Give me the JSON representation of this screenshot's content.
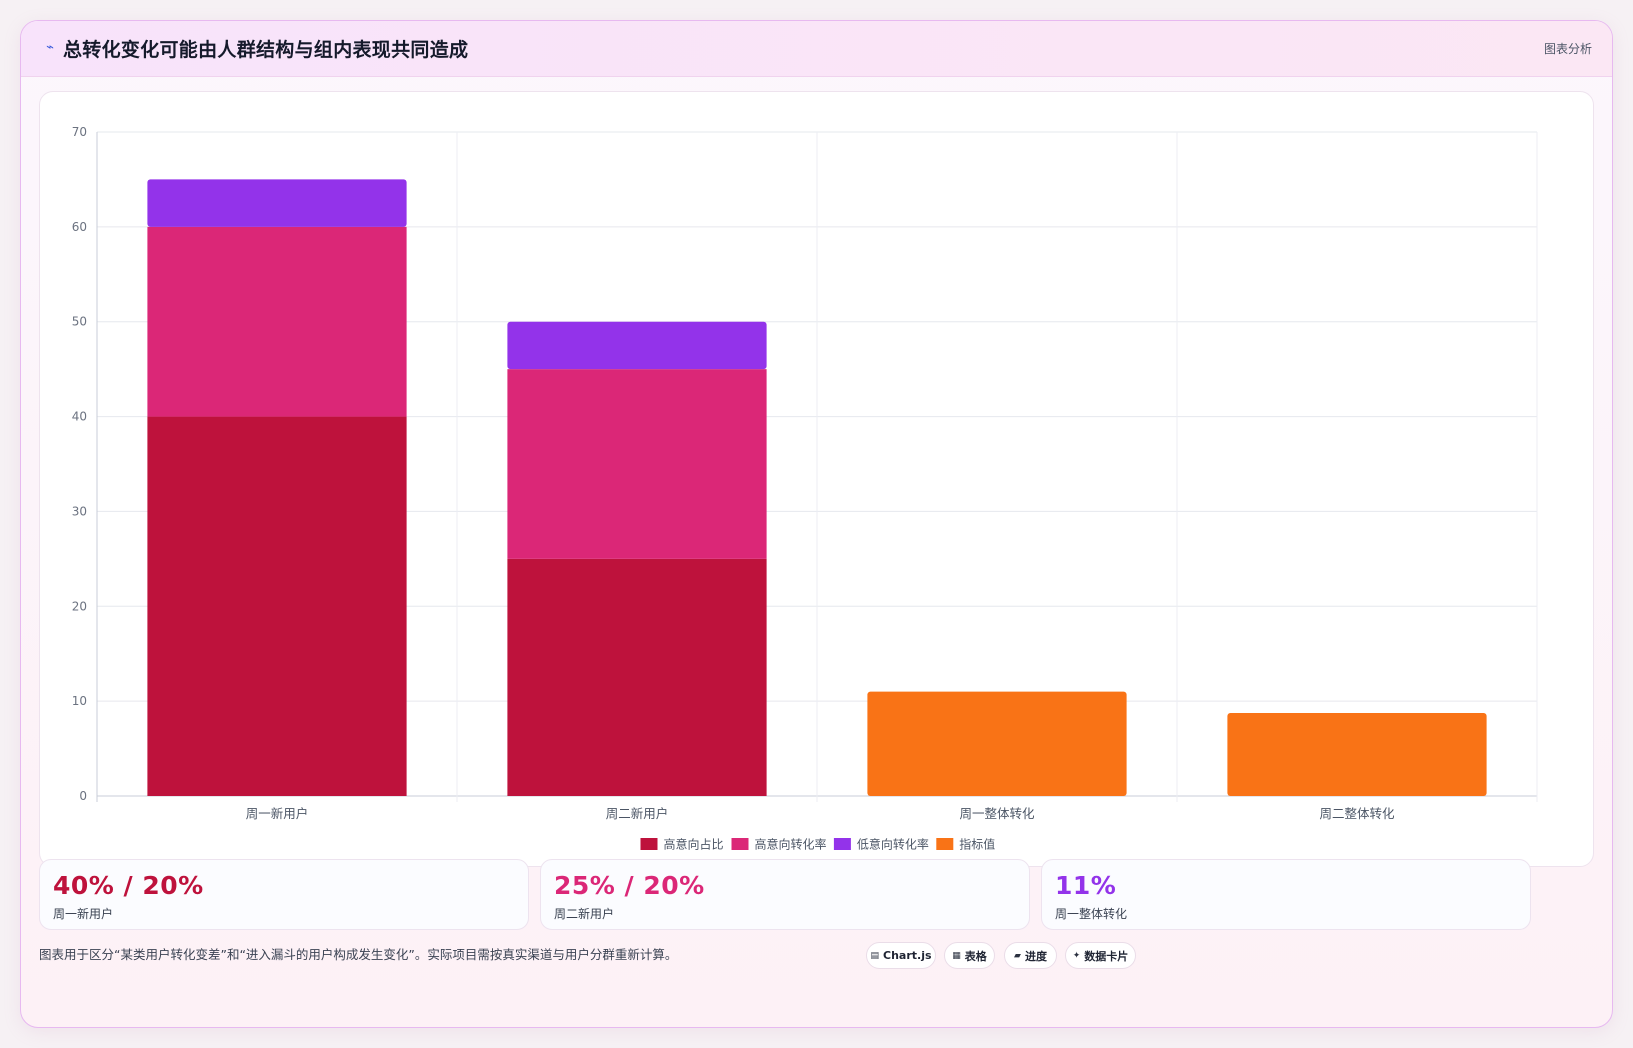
{
  "header": {
    "icon": "trend-icon",
    "title": "总转化变化可能由人群结构与组内表现共同造成",
    "tag": "图表分析"
  },
  "chart_data": {
    "type": "bar",
    "stacked": true,
    "title": "",
    "xlabel": "",
    "ylabel": "",
    "ylim": [
      0,
      70
    ],
    "yticks": [
      0,
      10,
      20,
      30,
      40,
      50,
      60,
      70
    ],
    "grid": true,
    "legend_position": "bottom",
    "categories": [
      "周一新用户",
      "周二新用户",
      "周一整体转化",
      "周二整体转化"
    ],
    "series": [
      {
        "name": "高意向占比",
        "color": "#be123c",
        "values": [
          40,
          25,
          null,
          null
        ]
      },
      {
        "name": "高意向转化率",
        "color": "#db2777",
        "values": [
          20,
          20,
          null,
          null
        ]
      },
      {
        "name": "低意向转化率",
        "color": "#9333ea",
        "values": [
          5,
          5,
          null,
          null
        ]
      },
      {
        "name": "指标值",
        "color": "#f97316",
        "values": [
          null,
          null,
          11,
          8.75
        ]
      }
    ]
  },
  "stats": [
    {
      "value": "40% / 20%",
      "label": "周一新用户",
      "color": "#be123c"
    },
    {
      "value": "25% / 20%",
      "label": "周二新用户",
      "color": "#db2777"
    },
    {
      "value": "11%",
      "label": "周一整体转化",
      "color": "#9333ea"
    }
  ],
  "footnote": "图表用于区分“某类用户转化变差”和“进入漏斗的用户构成发生变化”。实际项目需按真实渠道与用户分群重新计算。",
  "pills": [
    {
      "icon": "chart-icon",
      "glyph": "▤",
      "label": "Chart.js"
    },
    {
      "icon": "table-icon",
      "glyph": "▦",
      "label": "表格"
    },
    {
      "icon": "progress-icon",
      "glyph": "▰",
      "label": "进度"
    },
    {
      "icon": "card-icon",
      "glyph": "✦",
      "label": "数据卡片"
    }
  ]
}
